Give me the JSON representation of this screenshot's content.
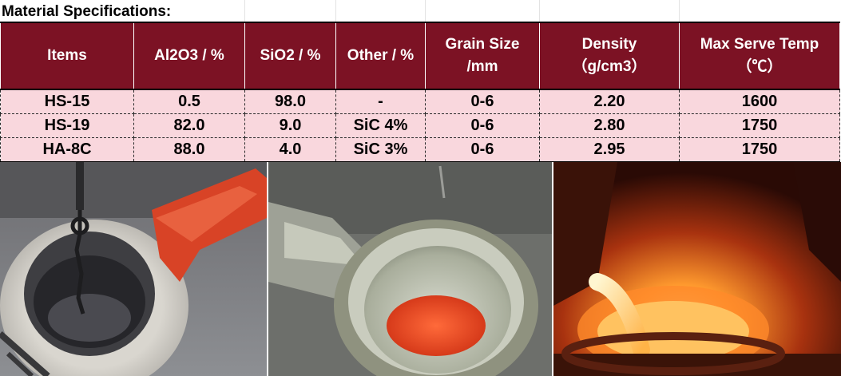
{
  "title": "Material Specifications:",
  "table": {
    "headers": [
      {
        "line1": "Items",
        "line2": ""
      },
      {
        "line1": "Al2O3 / %",
        "line2": ""
      },
      {
        "line1": "SiO2 / %",
        "line2": ""
      },
      {
        "line1": "Other / %",
        "line2": ""
      },
      {
        "line1": "Grain Size",
        "line2": "/mm"
      },
      {
        "line1": "Density",
        "line2": "（g/cm3）"
      },
      {
        "line1": "Max Serve Temp",
        "line2": "（℃）"
      }
    ],
    "rows": [
      [
        "HS-15",
        "0.5",
        "98.0",
        "-",
        "0-6",
        "2.20",
        "1600"
      ],
      [
        "HS-19",
        "82.0",
        "9.0",
        "SiC 4%",
        "0-6",
        "2.80",
        "1750"
      ],
      [
        "HA-8C",
        "88.0",
        "4.0",
        "SiC 3%",
        "0-6",
        "2.95",
        "1750"
      ]
    ]
  },
  "colors": {
    "header_bg": "#7c1224",
    "row_bg": "#f9d7dd"
  },
  "photos": [
    "furnace-with-crane-chain-photo",
    "ladle-with-red-lining-photo",
    "molten-metal-pouring-photo"
  ]
}
